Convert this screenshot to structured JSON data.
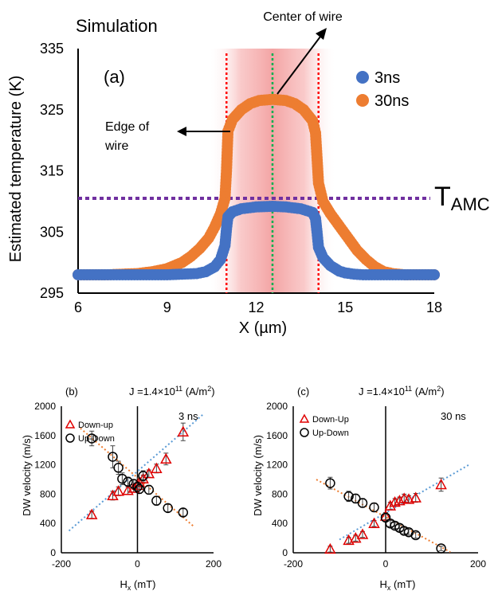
{
  "chart_data": [
    {
      "id": "a",
      "type": "scatter",
      "panel_label": "(a)",
      "title": "Simulation",
      "xlabel": "X (µm)",
      "ylabel": "Estimated temperature (K)",
      "xlim": [
        6,
        18
      ],
      "ylim": [
        295,
        335
      ],
      "xticks": [
        6,
        9,
        12,
        15,
        18
      ],
      "yticks": [
        295,
        305,
        315,
        325,
        335
      ],
      "grid": false,
      "legend_position": "top-right",
      "annotations": {
        "center": "Center of wire",
        "edge_line1": "Edge of",
        "edge_line2": "wire",
        "tamc_main": "T",
        "tamc_sub": "AMC"
      },
      "tamc_value": 310.5,
      "edges": [
        11.0,
        14.1
      ],
      "center_x": 12.55,
      "colors": {
        "s3": "#4472c4",
        "s30": "#ed7d31",
        "edge": "#ff0000",
        "center": "#00b050",
        "tamc": "#7030a0",
        "title": "#ff0000"
      },
      "series": [
        {
          "name": "3ns",
          "key": "s3",
          "x": [
            6.0,
            6.5,
            7.0,
            7.5,
            8.0,
            8.5,
            9.0,
            9.5,
            10.0,
            10.3,
            10.6,
            10.8,
            10.95,
            11.0,
            11.05,
            11.2,
            11.5,
            12.0,
            12.55,
            13.0,
            13.5,
            13.9,
            14.0,
            14.05,
            14.1,
            14.25,
            14.5,
            14.8,
            15.0,
            15.3,
            15.6,
            16.0,
            16.5,
            17.0,
            17.5,
            18.0
          ],
          "y": [
            298,
            298,
            298,
            298,
            298,
            298,
            298,
            298.1,
            298.2,
            298.5,
            299.3,
            300.5,
            302.8,
            305.5,
            307.5,
            308.3,
            308.8,
            309.1,
            309.2,
            309.1,
            308.8,
            308.2,
            307.2,
            305.0,
            302.5,
            300.8,
            299.5,
            298.6,
            298.3,
            298.1,
            298,
            298,
            298,
            298,
            298,
            298
          ]
        },
        {
          "name": "30ns",
          "key": "s30",
          "x": [
            6.0,
            6.5,
            7.0,
            7.5,
            8.0,
            8.5,
            9.0,
            9.5,
            9.8,
            10.1,
            10.4,
            10.6,
            10.8,
            10.95,
            11.0,
            11.05,
            11.2,
            11.5,
            11.8,
            12.1,
            12.55,
            13.0,
            13.3,
            13.6,
            13.9,
            14.0,
            14.05,
            14.1,
            14.25,
            14.5,
            14.8,
            15.1,
            15.4,
            15.7,
            16.0,
            16.3,
            16.6,
            17.0,
            17.5,
            18.0
          ],
          "y": [
            298,
            298,
            298,
            298.1,
            298.2,
            298.5,
            299,
            300,
            301,
            302.3,
            304,
            305.8,
            308,
            310.5,
            315,
            321.5,
            323.4,
            325,
            326,
            326.5,
            326.7,
            326.5,
            326,
            325,
            323.2,
            321.2,
            317.2,
            313,
            310,
            308,
            306,
            304,
            302,
            300.5,
            299.3,
            298.5,
            298.2,
            298,
            298,
            298
          ]
        }
      ]
    },
    {
      "id": "b",
      "type": "scatter",
      "panel_label": "(b)",
      "title": "J =1.4×10",
      "title_sup": "11",
      "title_unit": " (A/m",
      "title_unit_sup": "2",
      "title_close": ")",
      "time_label": "3 ns",
      "xlabel": "H",
      "xlabel_sub": "x",
      "xlabel_unit": " (mT)",
      "ylabel": "DW velocity (m/s)",
      "xlim": [
        -200,
        200
      ],
      "ylim": [
        0,
        2000
      ],
      "xticks": [
        -200,
        0,
        200
      ],
      "yticks": [
        0,
        400,
        800,
        1200,
        1600,
        2000
      ],
      "grid": false,
      "legend_position": "top-left",
      "series": [
        {
          "name": "Down-up",
          "marker": "triangle",
          "x": [
            -120,
            -65,
            -50,
            -25,
            -10,
            0,
            5,
            15,
            30,
            50,
            75,
            120
          ],
          "y": [
            520,
            780,
            840,
            850,
            880,
            920,
            960,
            1010,
            1080,
            1150,
            1280,
            1650
          ],
          "err": [
            50,
            60,
            60,
            50,
            50,
            50,
            60,
            50,
            50,
            60,
            80,
            120
          ]
        },
        {
          "name": "Up-Down",
          "marker": "circle",
          "x": [
            -120,
            -65,
            -50,
            -40,
            -25,
            -10,
            0,
            5,
            15,
            30,
            50,
            80,
            120
          ],
          "y": [
            1560,
            1310,
            1160,
            1010,
            970,
            940,
            900,
            870,
            1050,
            860,
            710,
            610,
            550
          ],
          "err": [
            100,
            150,
            90,
            80,
            60,
            60,
            60,
            60,
            70,
            60,
            60,
            50,
            50
          ]
        }
      ],
      "fit_lines": [
        {
          "color": "#5b9bd5",
          "x": [
            -180,
            175
          ],
          "y": [
            300,
            1900
          ]
        },
        {
          "color": "#ed7d31",
          "x": [
            -150,
            150
          ],
          "y": [
            1700,
            350
          ]
        }
      ]
    },
    {
      "id": "c",
      "type": "scatter",
      "panel_label": "(c)",
      "title": "J =1.4×10",
      "title_sup": "11",
      "title_unit": " (A/m",
      "title_unit_sup": "2",
      "title_close": ")",
      "time_label": "30 ns",
      "xlabel": "H",
      "xlabel_sub": "x",
      "xlabel_unit": " (mT)",
      "ylabel": "DW velocity (m/s)",
      "xlim": [
        -200,
        200
      ],
      "ylim": [
        0,
        2000
      ],
      "xticks": [
        -200,
        0,
        200
      ],
      "yticks": [
        0,
        400,
        800,
        1200,
        1600,
        2000
      ],
      "grid": false,
      "legend_position": "top-left",
      "series": [
        {
          "name": "Down-Up",
          "marker": "triangle",
          "x": [
            -120,
            -80,
            -65,
            -50,
            -25,
            0,
            10,
            20,
            30,
            40,
            50,
            65,
            120
          ],
          "y": [
            50,
            170,
            200,
            250,
            400,
            500,
            640,
            690,
            710,
            740,
            730,
            750,
            930
          ],
          "err": [
            40,
            40,
            40,
            40,
            40,
            50,
            50,
            50,
            50,
            60,
            50,
            60,
            90
          ]
        },
        {
          "name": "Up-Down",
          "marker": "circle",
          "x": [
            -120,
            -80,
            -65,
            -50,
            -25,
            0,
            10,
            20,
            30,
            40,
            50,
            65,
            120
          ],
          "y": [
            950,
            770,
            740,
            680,
            620,
            480,
            400,
            370,
            340,
            300,
            280,
            240,
            60
          ],
          "err": [
            80,
            70,
            60,
            60,
            60,
            50,
            40,
            40,
            40,
            40,
            40,
            40,
            30
          ]
        }
      ],
      "fit_lines": [
        {
          "color": "#5b9bd5",
          "x": [
            -100,
            180
          ],
          "y": [
            180,
            1200
          ]
        },
        {
          "color": "#ed7d31",
          "x": [
            -150,
            140
          ],
          "y": [
            1000,
            10
          ]
        }
      ]
    }
  ]
}
